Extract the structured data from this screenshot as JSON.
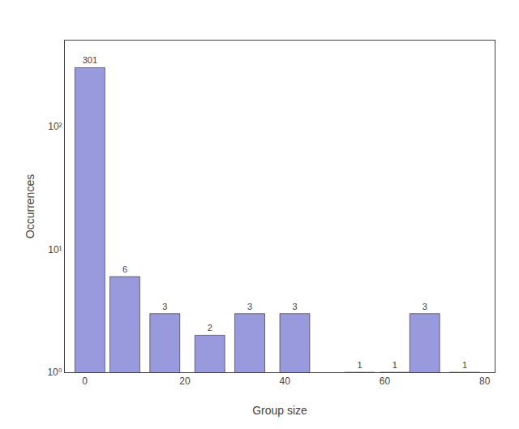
{
  "chart_data": {
    "type": "bar",
    "x": [
      1,
      8,
      16,
      25,
      33,
      42,
      55,
      62,
      68,
      76
    ],
    "values": [
      301,
      6,
      3,
      2,
      3,
      3,
      1,
      1,
      3,
      1
    ],
    "color": "#9999dd",
    "xlabel": "Group size",
    "ylabel": "Occurrences",
    "xlim": [
      -4,
      82
    ],
    "xticks": [
      0,
      20,
      40,
      60,
      80
    ],
    "ylim": [
      1,
      500
    ],
    "yticks": [
      {
        "value": 1,
        "label": "10⁰"
      },
      {
        "value": 10,
        "label": "10¹"
      },
      {
        "value": 100,
        "label": "10²"
      }
    ],
    "log": "y",
    "data_labels": true,
    "grid": false
  }
}
